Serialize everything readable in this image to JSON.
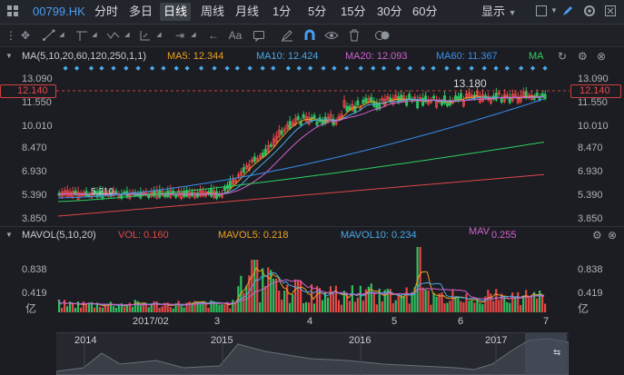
{
  "toolbar": {
    "symbol": "00799.HK",
    "periods": [
      "分时",
      "多日",
      "日线",
      "周线",
      "月线",
      "1分",
      "5分",
      "15分",
      "30分",
      "60分"
    ],
    "active_period": "日线",
    "display_label": "显示",
    "icons": [
      "grid-icon",
      "copy-icon",
      "refresh-icon",
      "square-icon",
      "pen-icon",
      "settings-icon"
    ]
  },
  "drawbar": {
    "icons": [
      "move-icon",
      "line-icon",
      "channel-icon",
      "wave-icon",
      "measure-icon",
      "range-icon",
      "back-icon",
      "text-icon",
      "comment-icon",
      "eraser-icon",
      "magnet-icon",
      "eye-icon",
      "trash-icon",
      "toggle-icon"
    ]
  },
  "main_header": {
    "label": "MA(5,10,20,60,120,250,1,1)",
    "ma5": "MA5: 12.344",
    "ma10": "MA10: 12.424",
    "ma20": "MA20: 12.093",
    "ma60": "MA60: 11.367",
    "ma": "MA",
    "colors": {
      "ma5": "#f0a020",
      "ma10": "#4aa8e8",
      "ma20": "#d060d0",
      "ma60": "#3b8ef0",
      "ma": "#30d060"
    }
  },
  "price_axis": {
    "labels": [
      "13.090",
      "11.550",
      "10.010",
      "8.470",
      "6.930",
      "5.390",
      "3.850"
    ],
    "current": "12.140",
    "high_annotation": "13.180",
    "low_annotation": "5.210"
  },
  "volume_header": {
    "label": "MAVOL(5,10,20)",
    "vol": "VOL: 0.160",
    "mavol5": "MAVOL5: 0.218",
    "mavol10": "MAVOL10: 0.234",
    "mav": "MAV",
    "mav_value": "0.255",
    "colors": {
      "vol": "#e04848",
      "mavol5": "#f0a020",
      "mavol10": "#4aa8e8",
      "mav": "#d060d0"
    }
  },
  "volume_axis": {
    "labels": [
      "0.838",
      "0.419"
    ],
    "unit": "亿"
  },
  "date_axis": [
    "2017/02",
    "3",
    "4",
    "5",
    "6",
    "7"
  ],
  "navigator_axis": [
    "2014",
    "2015",
    "2016",
    "2017"
  ],
  "colors": {
    "up": "#e84848",
    "down": "#30c060",
    "ma5": "#f0a020",
    "ma10": "#4aa8e8",
    "ma20": "#d060d0",
    "ma60": "#3b8ef0",
    "ma120": "#30d060",
    "ma250": "#e04848"
  }
}
